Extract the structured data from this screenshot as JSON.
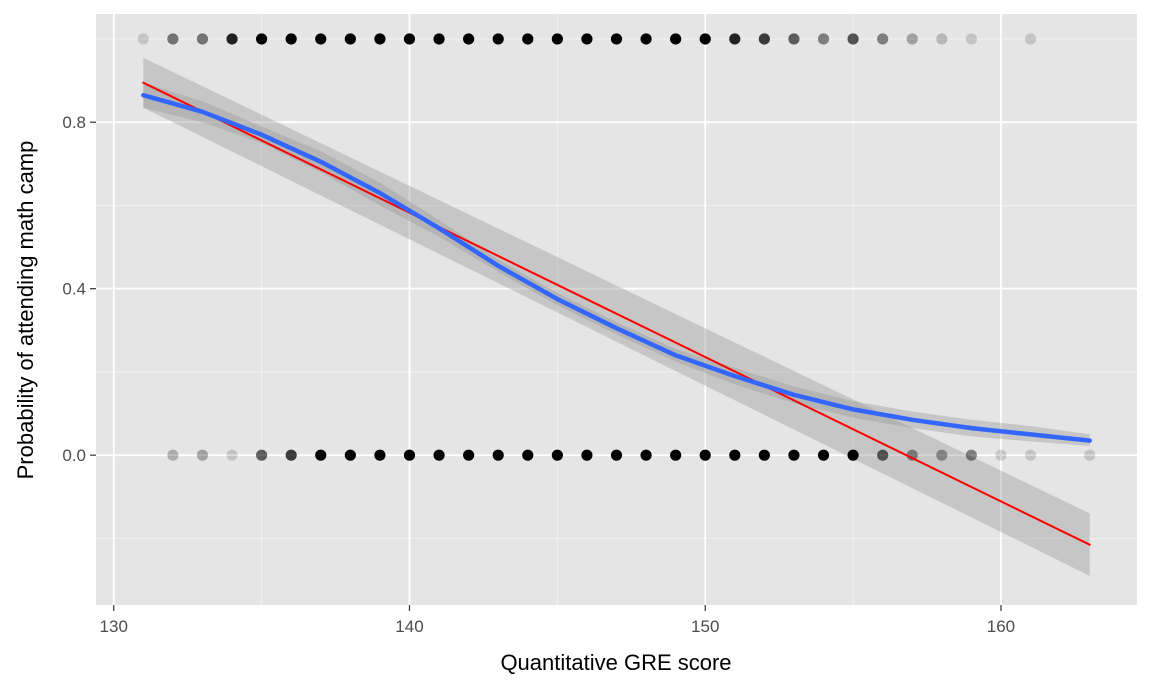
{
  "chart_data": {
    "type": "scatter",
    "title": "",
    "xlabel": "Quantitative GRE score",
    "ylabel": "Probability of attending math camp",
    "xlim": [
      129.4,
      164.6
    ],
    "ylim": [
      -0.36,
      1.06
    ],
    "x_ticks": [
      130,
      140,
      150,
      160
    ],
    "x_tick_labels": [
      "130",
      "140",
      "150",
      "160"
    ],
    "y_ticks": [
      0.0,
      0.4,
      0.8
    ],
    "y_tick_labels": [
      "0.0",
      "0.4",
      "0.8"
    ],
    "grid": true,
    "points_y1": {
      "x": [
        131,
        132,
        133,
        134,
        135,
        136,
        137,
        138,
        139,
        140,
        141,
        142,
        143,
        144,
        145,
        146,
        147,
        148,
        149,
        150,
        151,
        152,
        153,
        154,
        155,
        156,
        157,
        158,
        159,
        161
      ],
      "opacity": [
        0.15,
        0.5,
        0.5,
        0.85,
        1,
        1,
        1,
        1,
        1,
        1,
        1,
        1,
        1,
        1,
        1,
        1,
        1,
        1,
        1,
        1,
        0.85,
        0.75,
        0.6,
        0.45,
        0.65,
        0.45,
        0.3,
        0.2,
        0.15,
        0.15
      ]
    },
    "points_y0": {
      "x": [
        132,
        133,
        134,
        135,
        136,
        137,
        138,
        139,
        140,
        141,
        142,
        143,
        144,
        145,
        146,
        147,
        148,
        149,
        150,
        151,
        152,
        153,
        154,
        155,
        156,
        157,
        158,
        159,
        160,
        161,
        163
      ],
      "opacity": [
        0.25,
        0.3,
        0.15,
        0.6,
        0.75,
        1,
        1,
        1,
        1,
        1,
        1,
        1,
        1,
        1,
        1,
        1,
        1,
        1,
        1,
        1,
        1,
        1,
        1,
        1,
        0.6,
        0.4,
        0.35,
        0.45,
        0.15,
        0.15,
        0.15
      ]
    },
    "series": [
      {
        "name": "",
        "style": "linear fit",
        "color": "#ff0000",
        "x": [
          131,
          163
        ],
        "y": [
          0.895,
          -0.215
        ],
        "ci_lower": [
          0.835,
          -0.29
        ],
        "ci_upper": [
          0.955,
          -0.14
        ]
      },
      {
        "name": "",
        "style": "logistic fit",
        "color": "#3366ff",
        "x": [
          131,
          133,
          135,
          137,
          139,
          141,
          143,
          145,
          147,
          149,
          151,
          153,
          155,
          157,
          159,
          161,
          163
        ],
        "y": [
          0.865,
          0.825,
          0.77,
          0.705,
          0.63,
          0.545,
          0.455,
          0.375,
          0.305,
          0.24,
          0.19,
          0.145,
          0.11,
          0.085,
          0.065,
          0.05,
          0.035
        ],
        "ci_lower": [
          0.835,
          0.8,
          0.75,
          0.68,
          0.6,
          0.525,
          0.44,
          0.36,
          0.29,
          0.225,
          0.17,
          0.125,
          0.09,
          0.065,
          0.045,
          0.033,
          0.022
        ],
        "ci_upper": [
          0.895,
          0.85,
          0.79,
          0.73,
          0.655,
          0.565,
          0.47,
          0.39,
          0.32,
          0.255,
          0.21,
          0.165,
          0.13,
          0.105,
          0.085,
          0.07,
          0.05
        ]
      }
    ],
    "colors": {
      "panel": "#e5e5e5",
      "grid_major": "#ffffff",
      "ribbon": "#999999",
      "point": "#000000"
    }
  }
}
